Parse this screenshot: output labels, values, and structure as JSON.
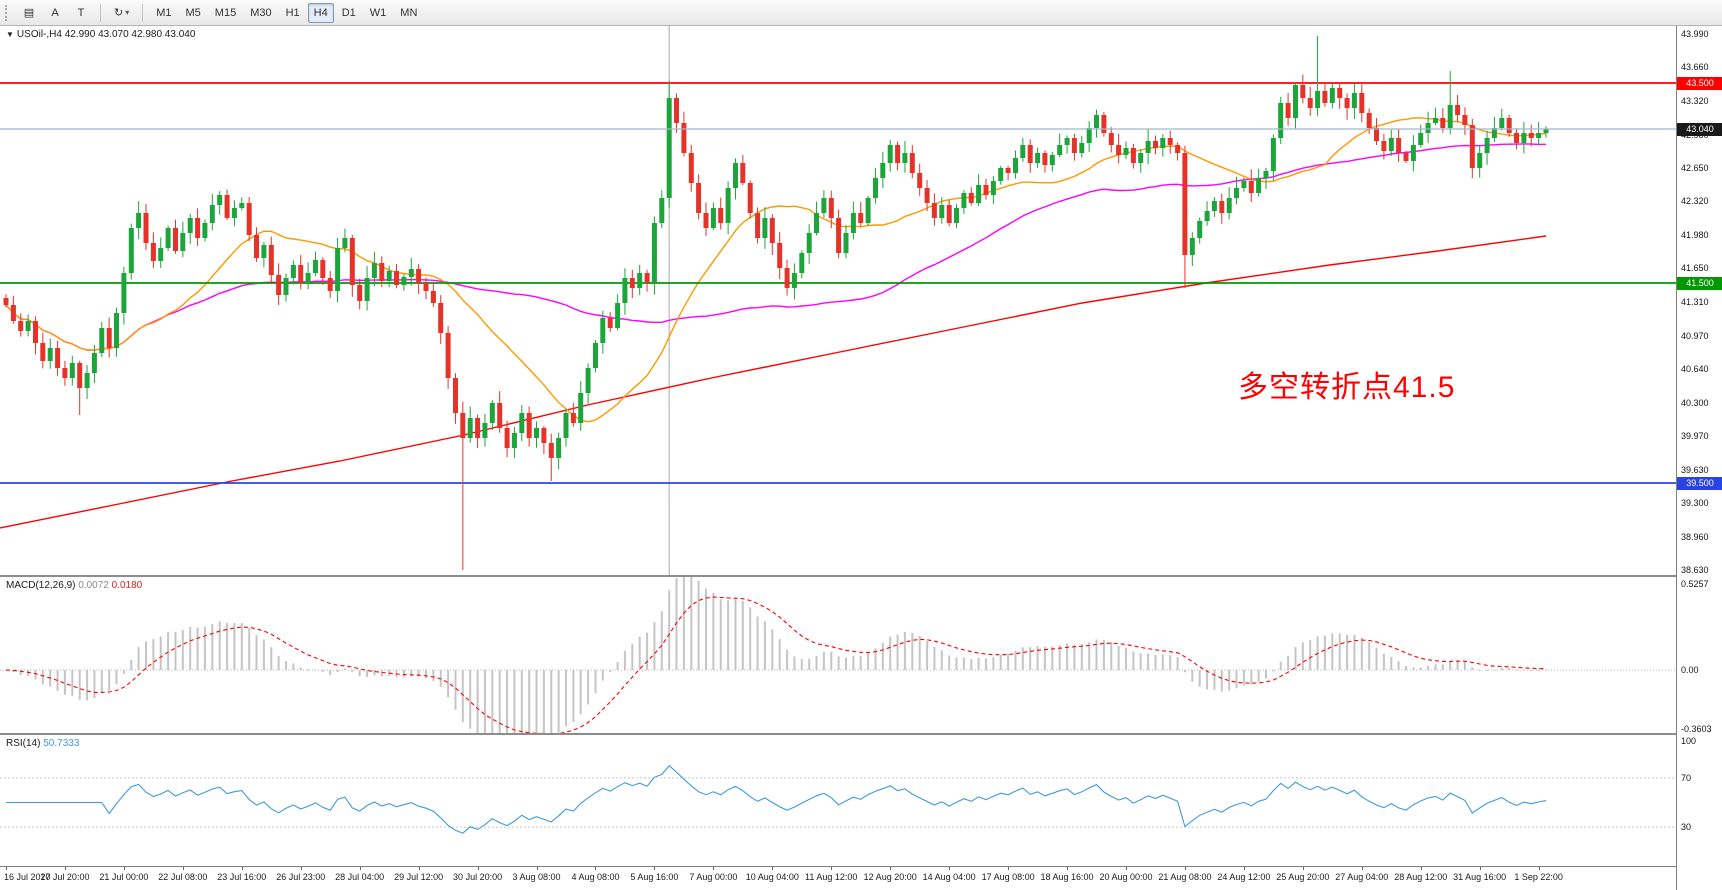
{
  "toolbar": {
    "icons": [
      {
        "name": "chart-list",
        "glyph": "▤"
      },
      {
        "name": "text-label",
        "glyph": "A"
      },
      {
        "name": "text-box",
        "glyph": "T"
      },
      {
        "name": "indicators",
        "glyph": "↻"
      }
    ],
    "timeframes": [
      "M1",
      "M5",
      "M15",
      "M30",
      "H1",
      "H4",
      "D1",
      "W1",
      "MN"
    ],
    "active_timeframe": "H4"
  },
  "main_title": {
    "dropdown_icon": "▼",
    "text": "USOil-,H4 42.990 43.070 42.980 43.040"
  },
  "macd_header": {
    "name": "MACD(12,26,9)",
    "values": [
      "0.0072",
      "0.0180"
    ]
  },
  "rsi_header": {
    "name": "RSI(14)",
    "value": "50.7333"
  },
  "annotation": {
    "text": "多空转折点41.5",
    "color": "#FF0000"
  },
  "colors": {
    "candle_up": "#1CA53A",
    "candle_down": "#E63329",
    "ma_fast": "#FF9900",
    "ma_mid": "#FF00FF",
    "ma_long": "#FF0000",
    "price_line": "#9FB6C9",
    "price_badge": "#1A1A1A",
    "macd_hist": "#C4C4C4",
    "macd_signal": "#FF0000",
    "rsi": "#3E9ADE"
  },
  "chart_data": {
    "type": "candlestick",
    "symbol": "USOil-",
    "timeframe": "H4",
    "ohlc_display": {
      "open": "42.990",
      "high": "43.070",
      "low": "42.980",
      "close": "43.040"
    },
    "main_ylim": [
      38.57,
      44.07
    ],
    "price_axis_ticks": [
      "43.990",
      "43.660",
      "43.320",
      "42.980",
      "42.650",
      "42.320",
      "41.980",
      "41.650",
      "41.310",
      "40.970",
      "40.640",
      "40.300",
      "39.970",
      "39.630",
      "39.300",
      "38.960",
      "38.630"
    ],
    "time_axis_labels": [
      "16 Jul 2020",
      "17 Jul 20:00",
      "21 Jul 00:00",
      "22 Jul 08:00",
      "23 Jul 16:00",
      "26 Jul 23:00",
      "28 Jul 04:00",
      "29 Jul 12:00",
      "30 Jul 20:00",
      "3 Aug 08:00",
      "4 Aug 08:00",
      "5 Aug 16:00",
      "7 Aug 00:00",
      "10 Aug 04:00",
      "11 Aug 12:00",
      "12 Aug 20:00",
      "14 Aug 04:00",
      "17 Aug 08:00",
      "18 Aug 16:00",
      "20 Aug 00:00",
      "21 Aug 08:00",
      "24 Aug 12:00",
      "25 Aug 20:00",
      "27 Aug 04:00",
      "28 Aug 12:00",
      "31 Aug 16:00",
      "1 Sep 22:00"
    ],
    "bars_per_label": 8,
    "levels": [
      {
        "price": 43.5,
        "label": "43.500",
        "color": "#FF0000"
      },
      {
        "price": 41.5,
        "label": "41.500",
        "color": "#009900"
      },
      {
        "price": 39.5,
        "label": "39.500",
        "color": "#2A44E4"
      }
    ],
    "current_price": {
      "value": 43.04,
      "label": "43.040"
    },
    "moving_averages": {
      "fast_period": 20,
      "mid_period": 60
    },
    "long_ma_points": [
      [
        0,
        39.05
      ],
      [
        0.08,
        39.3
      ],
      [
        0.15,
        39.52
      ],
      [
        0.22,
        39.72
      ],
      [
        0.3,
        39.98
      ],
      [
        0.38,
        40.28
      ],
      [
        0.46,
        40.55
      ],
      [
        0.54,
        40.8
      ],
      [
        0.62,
        41.05
      ],
      [
        0.7,
        41.3
      ],
      [
        0.78,
        41.5
      ],
      [
        0.86,
        41.68
      ],
      [
        0.93,
        41.82
      ],
      [
        1.0,
        41.97
      ]
    ],
    "vline_bar": 90,
    "candles": {
      "first_open": 41.35,
      "closes": [
        41.28,
        41.12,
        41.02,
        41.12,
        40.9,
        40.72,
        40.85,
        40.65,
        40.55,
        40.7,
        40.45,
        40.6,
        40.8,
        41.05,
        40.85,
        41.2,
        41.6,
        42.05,
        42.2,
        41.9,
        41.72,
        41.85,
        42.05,
        41.82,
        42.0,
        42.15,
        41.95,
        42.1,
        42.28,
        42.38,
        42.15,
        42.25,
        42.3,
        41.98,
        41.75,
        41.88,
        41.58,
        41.38,
        41.55,
        41.68,
        41.5,
        41.6,
        41.73,
        41.55,
        41.42,
        41.85,
        41.95,
        41.48,
        41.32,
        41.55,
        41.7,
        41.52,
        41.62,
        41.48,
        41.56,
        41.64,
        41.5,
        41.42,
        41.3,
        41.0,
        40.55,
        40.2,
        39.95,
        40.15,
        39.95,
        40.1,
        40.3,
        40.05,
        39.85,
        40.0,
        40.2,
        39.95,
        40.05,
        39.9,
        39.75,
        39.95,
        40.2,
        40.1,
        40.4,
        40.65,
        40.9,
        41.15,
        41.05,
        41.3,
        41.55,
        41.45,
        41.6,
        41.5,
        42.1,
        42.35,
        43.35,
        43.1,
        42.8,
        42.5,
        42.2,
        42.05,
        42.25,
        42.1,
        42.45,
        42.7,
        42.5,
        42.2,
        41.95,
        42.15,
        41.9,
        41.65,
        41.45,
        41.6,
        41.8,
        42.0,
        42.2,
        42.35,
        42.15,
        41.8,
        42.0,
        42.2,
        42.1,
        42.35,
        42.55,
        42.7,
        42.88,
        42.7,
        42.8,
        42.6,
        42.45,
        42.3,
        42.15,
        42.28,
        42.1,
        42.25,
        42.4,
        42.3,
        42.48,
        42.38,
        42.52,
        42.65,
        42.6,
        42.75,
        42.88,
        42.7,
        42.8,
        42.68,
        42.78,
        42.88,
        42.95,
        42.8,
        42.9,
        43.05,
        43.18,
        43.0,
        42.88,
        42.78,
        42.85,
        42.7,
        42.8,
        42.92,
        42.85,
        42.95,
        42.88,
        42.8,
        41.78,
        41.95,
        42.12,
        42.22,
        42.32,
        42.2,
        42.35,
        42.45,
        42.52,
        42.4,
        42.55,
        42.62,
        42.95,
        43.3,
        43.15,
        43.48,
        43.35,
        43.25,
        43.42,
        43.3,
        43.45,
        43.35,
        43.25,
        43.4,
        43.2,
        43.05,
        42.92,
        42.82,
        42.95,
        42.8,
        42.72,
        42.88,
        43.0,
        43.1,
        43.15,
        43.05,
        43.28,
        43.18,
        43.08,
        42.65,
        42.8,
        42.95,
        43.05,
        43.15,
        43.0,
        42.9,
        43.0,
        42.95,
        43.0,
        43.04
      ],
      "wick_overrides": {
        "10": {
          "low": 40.18
        },
        "62": {
          "low": 38.63
        },
        "74": {
          "low": 39.52
        },
        "90": {
          "high": 43.52
        },
        "160": {
          "low": 41.45
        },
        "178": {
          "high": 43.97
        },
        "196": {
          "high": 43.62
        }
      }
    },
    "macd": {
      "params": "12,26,9",
      "fast": 12,
      "slow": 26,
      "signal": 9,
      "axis": [
        "0.5257",
        "0.00",
        "-0.3603"
      ],
      "ylim": [
        -0.397,
        0.568
      ]
    },
    "rsi": {
      "period": 14,
      "axis": [
        "100",
        "70",
        "30"
      ],
      "levels": [
        70,
        30
      ],
      "ylim": [
        -1.6,
        104.8
      ]
    }
  }
}
